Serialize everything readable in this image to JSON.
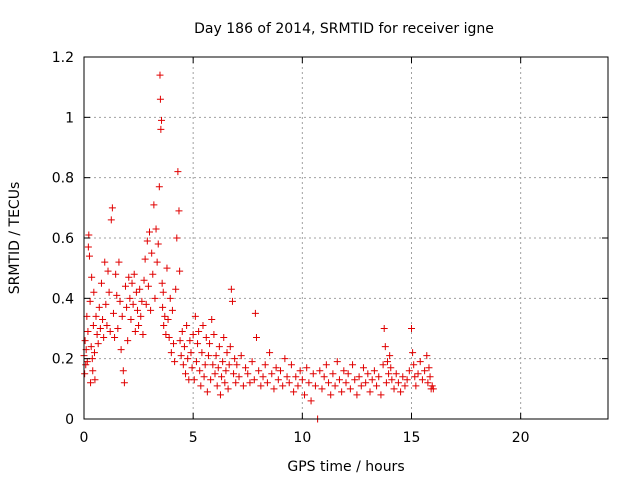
{
  "chart_data": {
    "type": "scatter",
    "title": "Day 186 of 2014, SRMTID for receiver igne",
    "xlabel": "GPS time / hours",
    "ylabel": "SRMTID / TECUs",
    "xlim": [
      0,
      24
    ],
    "ylim": [
      0,
      1.2
    ],
    "xticks": [
      0,
      5,
      10,
      15,
      20
    ],
    "xtick_labels": [
      "0",
      "5",
      "10",
      "15",
      "20"
    ],
    "yticks": [
      0,
      0.2,
      0.4,
      0.6,
      0.8,
      1.0,
      1.2
    ],
    "ytick_labels": [
      "0",
      "0.2",
      "0.4",
      "0.6",
      "0.8",
      "1",
      "1.2"
    ],
    "grid": true,
    "marker": "plus",
    "color": "#e00000",
    "series": [
      {
        "name": "SRMTID",
        "points": [
          [
            0.0,
            0.21
          ],
          [
            0.03,
            0.15
          ],
          [
            0.05,
            0.26
          ],
          [
            0.08,
            0.18
          ],
          [
            0.1,
            0.23
          ],
          [
            0.13,
            0.34
          ],
          [
            0.15,
            0.19
          ],
          [
            0.18,
            0.29
          ],
          [
            0.2,
            0.57
          ],
          [
            0.22,
            0.61
          ],
          [
            0.25,
            0.54
          ],
          [
            0.28,
            0.39
          ],
          [
            0.3,
            0.12
          ],
          [
            0.33,
            0.24
          ],
          [
            0.35,
            0.47
          ],
          [
            0.38,
            0.2
          ],
          [
            0.4,
            0.16
          ],
          [
            0.43,
            0.31
          ],
          [
            0.45,
            0.42
          ],
          [
            0.48,
            0.22
          ],
          [
            0.5,
            0.13
          ],
          [
            0.55,
            0.34
          ],
          [
            0.6,
            0.28
          ],
          [
            0.65,
            0.25
          ],
          [
            0.7,
            0.37
          ],
          [
            0.75,
            0.3
          ],
          [
            0.8,
            0.45
          ],
          [
            0.85,
            0.33
          ],
          [
            0.9,
            0.27
          ],
          [
            0.95,
            0.52
          ],
          [
            1.0,
            0.38
          ],
          [
            1.05,
            0.31
          ],
          [
            1.1,
            0.49
          ],
          [
            1.15,
            0.42
          ],
          [
            1.2,
            0.29
          ],
          [
            1.25,
            0.66
          ],
          [
            1.3,
            0.7
          ],
          [
            1.35,
            0.35
          ],
          [
            1.4,
            0.27
          ],
          [
            1.45,
            0.48
          ],
          [
            1.5,
            0.41
          ],
          [
            1.55,
            0.3
          ],
          [
            1.6,
            0.52
          ],
          [
            1.65,
            0.39
          ],
          [
            1.7,
            0.23
          ],
          [
            1.75,
            0.34
          ],
          [
            1.8,
            0.16
          ],
          [
            1.85,
            0.12
          ],
          [
            1.9,
            0.44
          ],
          [
            1.95,
            0.37
          ],
          [
            2.0,
            0.26
          ],
          [
            2.05,
            0.47
          ],
          [
            2.1,
            0.4
          ],
          [
            2.15,
            0.33
          ],
          [
            2.2,
            0.45
          ],
          [
            2.25,
            0.38
          ],
          [
            2.3,
            0.48
          ],
          [
            2.35,
            0.29
          ],
          [
            2.4,
            0.42
          ],
          [
            2.45,
            0.36
          ],
          [
            2.5,
            0.31
          ],
          [
            2.55,
            0.43
          ],
          [
            2.6,
            0.34
          ],
          [
            2.65,
            0.39
          ],
          [
            2.7,
            0.28
          ],
          [
            2.75,
            0.46
          ],
          [
            2.8,
            0.53
          ],
          [
            2.85,
            0.38
          ],
          [
            2.9,
            0.59
          ],
          [
            2.95,
            0.44
          ],
          [
            3.0,
            0.62
          ],
          [
            3.05,
            0.36
          ],
          [
            3.1,
            0.55
          ],
          [
            3.15,
            0.48
          ],
          [
            3.2,
            0.71
          ],
          [
            3.25,
            0.4
          ],
          [
            3.3,
            0.63
          ],
          [
            3.35,
            0.52
          ],
          [
            3.4,
            0.58
          ],
          [
            3.45,
            0.77
          ],
          [
            3.48,
            1.14
          ],
          [
            3.5,
            1.06
          ],
          [
            3.52,
            0.96
          ],
          [
            3.55,
            0.99
          ],
          [
            3.58,
            0.45
          ],
          [
            3.6,
            0.37
          ],
          [
            3.63,
            0.42
          ],
          [
            3.65,
            0.31
          ],
          [
            3.7,
            0.34
          ],
          [
            3.75,
            0.28
          ],
          [
            3.8,
            0.5
          ],
          [
            3.85,
            0.33
          ],
          [
            3.9,
            0.27
          ],
          [
            3.95,
            0.4
          ],
          [
            4.0,
            0.22
          ],
          [
            4.05,
            0.36
          ],
          [
            4.1,
            0.25
          ],
          [
            4.15,
            0.19
          ],
          [
            4.2,
            0.43
          ],
          [
            4.25,
            0.6
          ],
          [
            4.3,
            0.82
          ],
          [
            4.35,
            0.69
          ],
          [
            4.38,
            0.49
          ],
          [
            4.4,
            0.26
          ],
          [
            4.45,
            0.21
          ],
          [
            4.5,
            0.29
          ],
          [
            4.55,
            0.18
          ],
          [
            4.6,
            0.24
          ],
          [
            4.65,
            0.15
          ],
          [
            4.7,
            0.31
          ],
          [
            4.75,
            0.2
          ],
          [
            4.8,
            0.13
          ],
          [
            4.85,
            0.26
          ],
          [
            4.9,
            0.22
          ],
          [
            4.95,
            0.17
          ],
          [
            5.0,
            0.28
          ],
          [
            5.05,
            0.13
          ],
          [
            5.1,
            0.34
          ],
          [
            5.15,
            0.19
          ],
          [
            5.2,
            0.25
          ],
          [
            5.25,
            0.29
          ],
          [
            5.3,
            0.16
          ],
          [
            5.35,
            0.11
          ],
          [
            5.4,
            0.22
          ],
          [
            5.45,
            0.31
          ],
          [
            5.5,
            0.14
          ],
          [
            5.55,
            0.18
          ],
          [
            5.6,
            0.27
          ],
          [
            5.65,
            0.09
          ],
          [
            5.7,
            0.21
          ],
          [
            5.75,
            0.25
          ],
          [
            5.8,
            0.13
          ],
          [
            5.85,
            0.33
          ],
          [
            5.9,
            0.18
          ],
          [
            5.95,
            0.28
          ],
          [
            6.0,
            0.15
          ],
          [
            6.05,
            0.21
          ],
          [
            6.1,
            0.11
          ],
          [
            6.15,
            0.17
          ],
          [
            6.2,
            0.24
          ],
          [
            6.25,
            0.08
          ],
          [
            6.3,
            0.14
          ],
          [
            6.35,
            0.19
          ],
          [
            6.4,
            0.27
          ],
          [
            6.45,
            0.12
          ],
          [
            6.5,
            0.16
          ],
          [
            6.55,
            0.22
          ],
          [
            6.6,
            0.1
          ],
          [
            6.65,
            0.18
          ],
          [
            6.7,
            0.24
          ],
          [
            6.75,
            0.43
          ],
          [
            6.8,
            0.39
          ],
          [
            6.85,
            0.15
          ],
          [
            6.9,
            0.2
          ],
          [
            6.95,
            0.12
          ],
          [
            7.0,
            0.18
          ],
          [
            7.1,
            0.14
          ],
          [
            7.2,
            0.21
          ],
          [
            7.3,
            0.11
          ],
          [
            7.4,
            0.17
          ],
          [
            7.5,
            0.15
          ],
          [
            7.6,
            0.12
          ],
          [
            7.7,
            0.19
          ],
          [
            7.8,
            0.13
          ],
          [
            7.85,
            0.35
          ],
          [
            7.9,
            0.27
          ],
          [
            8.0,
            0.16
          ],
          [
            8.1,
            0.11
          ],
          [
            8.2,
            0.14
          ],
          [
            8.3,
            0.18
          ],
          [
            8.4,
            0.12
          ],
          [
            8.5,
            0.22
          ],
          [
            8.6,
            0.15
          ],
          [
            8.7,
            0.1
          ],
          [
            8.8,
            0.17
          ],
          [
            8.9,
            0.13
          ],
          [
            9.0,
            0.16
          ],
          [
            9.1,
            0.11
          ],
          [
            9.2,
            0.2
          ],
          [
            9.3,
            0.14
          ],
          [
            9.4,
            0.12
          ],
          [
            9.5,
            0.18
          ],
          [
            9.6,
            0.09
          ],
          [
            9.7,
            0.14
          ],
          [
            9.8,
            0.11
          ],
          [
            9.9,
            0.16
          ],
          [
            10.0,
            0.13
          ],
          [
            10.1,
            0.08
          ],
          [
            10.2,
            0.17
          ],
          [
            10.3,
            0.12
          ],
          [
            10.4,
            0.06
          ],
          [
            10.5,
            0.15
          ],
          [
            10.6,
            0.11
          ],
          [
            10.7,
            0.0
          ],
          [
            10.8,
            0.16
          ],
          [
            10.9,
            0.1
          ],
          [
            11.0,
            0.14
          ],
          [
            11.1,
            0.18
          ],
          [
            11.2,
            0.12
          ],
          [
            11.3,
            0.08
          ],
          [
            11.4,
            0.15
          ],
          [
            11.5,
            0.11
          ],
          [
            11.6,
            0.19
          ],
          [
            11.7,
            0.13
          ],
          [
            11.8,
            0.09
          ],
          [
            11.9,
            0.16
          ],
          [
            12.0,
            0.12
          ],
          [
            12.1,
            0.15
          ],
          [
            12.2,
            0.1
          ],
          [
            12.3,
            0.18
          ],
          [
            12.4,
            0.13
          ],
          [
            12.5,
            0.08
          ],
          [
            12.6,
            0.14
          ],
          [
            12.7,
            0.11
          ],
          [
            12.8,
            0.17
          ],
          [
            12.9,
            0.12
          ],
          [
            13.0,
            0.15
          ],
          [
            13.1,
            0.09
          ],
          [
            13.2,
            0.13
          ],
          [
            13.3,
            0.16
          ],
          [
            13.4,
            0.11
          ],
          [
            13.5,
            0.14
          ],
          [
            13.6,
            0.08
          ],
          [
            13.7,
            0.18
          ],
          [
            13.75,
            0.3
          ],
          [
            13.8,
            0.24
          ],
          [
            13.85,
            0.12
          ],
          [
            13.9,
            0.19
          ],
          [
            13.95,
            0.15
          ],
          [
            14.0,
            0.21
          ],
          [
            14.05,
            0.17
          ],
          [
            14.1,
            0.13
          ],
          [
            14.2,
            0.1
          ],
          [
            14.3,
            0.15
          ],
          [
            14.4,
            0.12
          ],
          [
            14.5,
            0.09
          ],
          [
            14.6,
            0.14
          ],
          [
            14.7,
            0.11
          ],
          [
            14.8,
            0.13
          ],
          [
            14.9,
            0.16
          ],
          [
            15.0,
            0.3
          ],
          [
            15.05,
            0.22
          ],
          [
            15.1,
            0.18
          ],
          [
            15.15,
            0.14
          ],
          [
            15.2,
            0.11
          ],
          [
            15.3,
            0.15
          ],
          [
            15.4,
            0.19
          ],
          [
            15.5,
            0.13
          ],
          [
            15.6,
            0.16
          ],
          [
            15.7,
            0.21
          ],
          [
            15.75,
            0.12
          ],
          [
            15.8,
            0.17
          ],
          [
            15.85,
            0.14
          ],
          [
            15.9,
            0.1
          ],
          [
            15.95,
            0.11
          ],
          [
            16.0,
            0.1
          ]
        ]
      }
    ]
  }
}
